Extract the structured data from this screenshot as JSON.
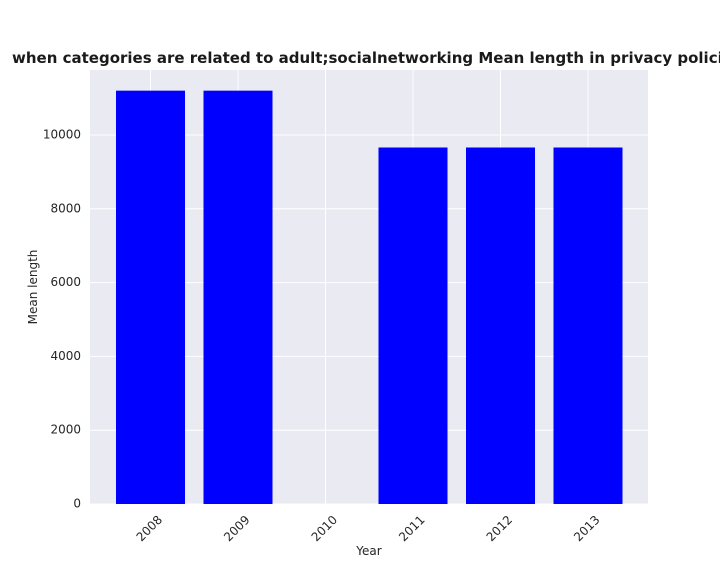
{
  "chart_data": {
    "type": "bar",
    "title": "when categories are related to adult;socialnetworking Mean length in privacy policies by Year",
    "xlabel": "Year",
    "ylabel": "Mean length",
    "categories": [
      "2008",
      "2009",
      "2010",
      "2011",
      "2012",
      "2013"
    ],
    "values": [
      11200,
      11200,
      0,
      9660,
      9660,
      9660
    ],
    "yticks": [
      "0",
      "2000",
      "4000",
      "6000",
      "8000",
      "10000"
    ],
    "ylim": [
      0,
      11760
    ],
    "grid": true,
    "bar_color": "#0000ff",
    "plot_background": "#eaeaf2",
    "grid_color": "#ffffff"
  }
}
